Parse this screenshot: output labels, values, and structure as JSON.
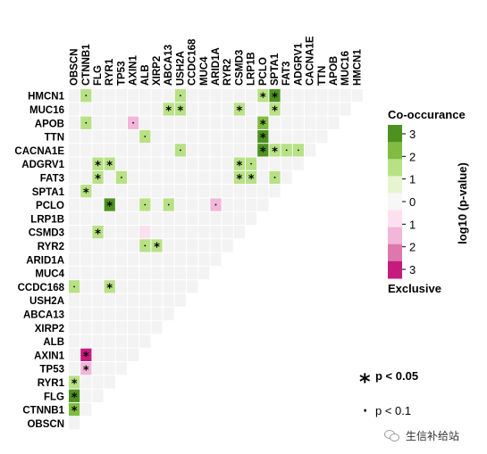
{
  "chart_data": {
    "type": "heatmap",
    "row_labels": [
      "HMCN1",
      "MUC16",
      "APOB",
      "TTN",
      "CACNA1E",
      "ADGRV1",
      "FAT3",
      "SPTA1",
      "PCLO",
      "LRP1B",
      "CSMD3",
      "RYR2",
      "ARID1A",
      "MUC4",
      "CCDC168",
      "USH2A",
      "ABCA13",
      "XIRP2",
      "ALB",
      "AXIN1",
      "TP53",
      "RYR1",
      "FLG",
      "CTNNB1",
      "OBSCN"
    ],
    "column_labels": [
      "OBSCN",
      "CTNNB1",
      "FLG",
      "RYR1",
      "TP53",
      "AXIN1",
      "ALB",
      "XIRP2",
      "ABCA13",
      "USH2A",
      "CCDC168",
      "MUC4",
      "ARID1A",
      "RYR2",
      "CSMD3",
      "LRP1B",
      "PCLO",
      "SPTA1",
      "FAT3",
      "ADGRV1",
      "CACNA1E",
      "TTN",
      "APOB",
      "MUC16",
      "HMCN1"
    ],
    "cells": [
      {
        "row": "HMCN1",
        "col": "CTNNB1",
        "value": 1,
        "sig": "dot"
      },
      {
        "row": "HMCN1",
        "col": "USH2A",
        "value": 1,
        "sig": "dot"
      },
      {
        "row": "HMCN1",
        "col": "PCLO",
        "value": 1,
        "sig": "star"
      },
      {
        "row": "HMCN1",
        "col": "SPTA1",
        "value": 2.5,
        "sig": "star"
      },
      {
        "row": "MUC16",
        "col": "ABCA13",
        "value": 1,
        "sig": "star"
      },
      {
        "row": "MUC16",
        "col": "USH2A",
        "value": 1,
        "sig": "star"
      },
      {
        "row": "MUC16",
        "col": "CSMD3",
        "value": 1,
        "sig": "star"
      },
      {
        "row": "MUC16",
        "col": "SPTA1",
        "value": 1,
        "sig": "star"
      },
      {
        "row": "APOB",
        "col": "CTNNB1",
        "value": 1,
        "sig": "dot"
      },
      {
        "row": "APOB",
        "col": "AXIN1",
        "value": -1,
        "sig": "dot"
      },
      {
        "row": "APOB",
        "col": "PCLO",
        "value": 2,
        "sig": "star"
      },
      {
        "row": "TTN",
        "col": "ALB",
        "value": 1,
        "sig": "dot"
      },
      {
        "row": "TTN",
        "col": "PCLO",
        "value": 2.5,
        "sig": "star"
      },
      {
        "row": "CACNA1E",
        "col": "USH2A",
        "value": 1,
        "sig": "dot"
      },
      {
        "row": "CACNA1E",
        "col": "PCLO",
        "value": 2.5,
        "sig": "star"
      },
      {
        "row": "CACNA1E",
        "col": "SPTA1",
        "value": 1,
        "sig": "star"
      },
      {
        "row": "CACNA1E",
        "col": "FAT3",
        "value": 1,
        "sig": "dot"
      },
      {
        "row": "CACNA1E",
        "col": "ADGRV1",
        "value": 1,
        "sig": "dot"
      },
      {
        "row": "ADGRV1",
        "col": "FLG",
        "value": 1,
        "sig": "star"
      },
      {
        "row": "ADGRV1",
        "col": "RYR1",
        "value": 1,
        "sig": "star"
      },
      {
        "row": "ADGRV1",
        "col": "CSMD3",
        "value": 1,
        "sig": "star"
      },
      {
        "row": "ADGRV1",
        "col": "LRP1B",
        "value": 1,
        "sig": "dot"
      },
      {
        "row": "FAT3",
        "col": "FLG",
        "value": 1,
        "sig": "star"
      },
      {
        "row": "FAT3",
        "col": "TP53",
        "value": 1,
        "sig": "dot"
      },
      {
        "row": "FAT3",
        "col": "CSMD3",
        "value": 1,
        "sig": "star"
      },
      {
        "row": "FAT3",
        "col": "LRP1B",
        "value": 1,
        "sig": "star"
      },
      {
        "row": "FAT3",
        "col": "SPTA1",
        "value": 1,
        "sig": "dot"
      },
      {
        "row": "SPTA1",
        "col": "CTNNB1",
        "value": 1,
        "sig": "star"
      },
      {
        "row": "PCLO",
        "col": "RYR1",
        "value": 2.5,
        "sig": "star"
      },
      {
        "row": "PCLO",
        "col": "ALB",
        "value": 1,
        "sig": "dot"
      },
      {
        "row": "PCLO",
        "col": "ABCA13",
        "value": 1,
        "sig": "dot"
      },
      {
        "row": "PCLO",
        "col": "ARID1A",
        "value": -1,
        "sig": "dot"
      },
      {
        "row": "CSMD3",
        "col": "FLG",
        "value": 1,
        "sig": "star"
      },
      {
        "row": "CSMD3",
        "col": "ALB",
        "value": -0.8,
        "sig": "none"
      },
      {
        "row": "RYR2",
        "col": "ALB",
        "value": 1,
        "sig": "dot"
      },
      {
        "row": "RYR2",
        "col": "XIRP2",
        "value": 1,
        "sig": "star"
      },
      {
        "row": "CCDC168",
        "col": "OBSCN",
        "value": 1,
        "sig": "dot"
      },
      {
        "row": "CCDC168",
        "col": "RYR1",
        "value": 1,
        "sig": "star"
      },
      {
        "row": "AXIN1",
        "col": "CTNNB1",
        "value": -2.5,
        "sig": "star"
      },
      {
        "row": "TP53",
        "col": "CTNNB1",
        "value": -1,
        "sig": "star"
      },
      {
        "row": "RYR1",
        "col": "OBSCN",
        "value": 1,
        "sig": "star"
      },
      {
        "row": "FLG",
        "col": "OBSCN",
        "value": 2.5,
        "sig": "star"
      },
      {
        "row": "CTNNB1",
        "col": "OBSCN",
        "value": 2,
        "sig": "star"
      }
    ],
    "colorbar": {
      "title": "log10 (p-value)",
      "top_label": "Co-occurance",
      "bottom_label": "Exclusive",
      "ticks": [
        "3",
        "2",
        "1",
        "0",
        "1",
        "2",
        "3"
      ],
      "colors": [
        "#4d9221",
        "#7fbc41",
        "#b8e186",
        "#e6f5d0",
        "#f7f7f7",
        "#fde0ef",
        "#f1b6da",
        "#de77ae",
        "#c51b7d"
      ]
    },
    "legend": {
      "star_symbol": "*",
      "star_text": "p < 0.05",
      "dot_symbol": "·",
      "dot_text": "p < 0.1"
    }
  },
  "watermark": {
    "text": "生信补给站",
    "icon": "wechat-icon"
  }
}
